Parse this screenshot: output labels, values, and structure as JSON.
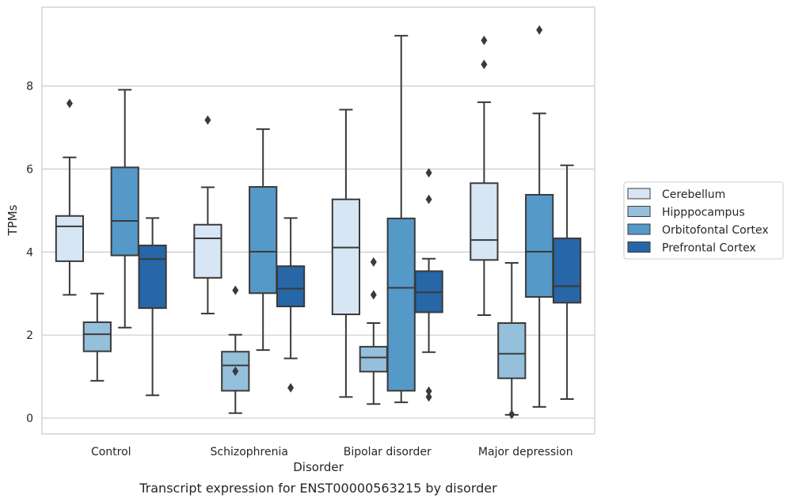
{
  "chart_data": {
    "type": "box",
    "caption": "Transcript expression for ENST00000563215 by disorder",
    "xlabel": "Disorder",
    "ylabel": "TPMs",
    "categories": [
      "Control",
      "Schizophrenia",
      "Bipolar disorder",
      "Major depression"
    ],
    "ylim": [
      -0.38,
      9.9
    ],
    "yticks": [
      0,
      2,
      4,
      6,
      8
    ],
    "grid": true,
    "legend_position": "right",
    "box_stroke": "#3a3a3a",
    "series": [
      {
        "name": "Cerebellum",
        "color": "#d6e6f4",
        "boxes": [
          {
            "whisker_low": 2.97,
            "q1": 3.78,
            "median": 4.62,
            "q3": 4.87,
            "whisker_high": 6.28,
            "outliers": [
              7.58
            ]
          },
          {
            "whisker_low": 2.52,
            "q1": 3.38,
            "median": 4.33,
            "q3": 4.66,
            "whisker_high": 5.56,
            "outliers": [
              7.18
            ]
          },
          {
            "whisker_low": 0.51,
            "q1": 2.5,
            "median": 4.11,
            "q3": 5.27,
            "whisker_high": 7.43,
            "outliers": []
          },
          {
            "whisker_low": 2.48,
            "q1": 3.81,
            "median": 4.29,
            "q3": 5.66,
            "whisker_high": 7.61,
            "outliers": [
              9.1,
              8.52
            ]
          }
        ]
      },
      {
        "name": "Hipppocampus",
        "color": "#95c0dc",
        "boxes": [
          {
            "whisker_low": 0.9,
            "q1": 1.61,
            "median": 2.02,
            "q3": 2.31,
            "whisker_high": 3.0,
            "outliers": []
          },
          {
            "whisker_low": 0.12,
            "q1": 0.66,
            "median": 1.27,
            "q3": 1.6,
            "whisker_high": 2.01,
            "outliers": [
              1.13,
              3.08
            ]
          },
          {
            "whisker_low": 0.34,
            "q1": 1.12,
            "median": 1.46,
            "q3": 1.72,
            "whisker_high": 2.29,
            "outliers": [
              3.76,
              2.97
            ]
          },
          {
            "whisker_low": 0.08,
            "q1": 0.96,
            "median": 1.55,
            "q3": 2.29,
            "whisker_high": 3.74,
            "outliers": [
              0.09
            ]
          }
        ]
      },
      {
        "name": "Orbitofontal Cortex",
        "color": "#5599c8",
        "boxes": [
          {
            "whisker_low": 2.18,
            "q1": 3.92,
            "median": 4.75,
            "q3": 6.04,
            "whisker_high": 7.91,
            "outliers": []
          },
          {
            "whisker_low": 1.64,
            "q1": 3.01,
            "median": 4.01,
            "q3": 5.57,
            "whisker_high": 6.96,
            "outliers": []
          },
          {
            "whisker_low": 0.38,
            "q1": 0.66,
            "median": 3.14,
            "q3": 4.81,
            "whisker_high": 9.21,
            "outliers": []
          },
          {
            "whisker_low": 0.27,
            "q1": 2.92,
            "median": 4.01,
            "q3": 5.38,
            "whisker_high": 7.34,
            "outliers": [
              9.35
            ]
          }
        ]
      },
      {
        "name": "Prefrontal Cortex",
        "color": "#2766a7",
        "boxes": [
          {
            "whisker_low": 0.55,
            "q1": 2.65,
            "median": 3.83,
            "q3": 4.16,
            "whisker_high": 4.82,
            "outliers": []
          },
          {
            "whisker_low": 1.44,
            "q1": 2.69,
            "median": 3.12,
            "q3": 3.66,
            "whisker_high": 4.82,
            "outliers": [
              0.73
            ]
          },
          {
            "whisker_low": 1.59,
            "q1": 2.55,
            "median": 3.03,
            "q3": 3.54,
            "whisker_high": 3.84,
            "outliers": [
              5.91,
              5.27,
              0.65,
              0.51
            ]
          },
          {
            "whisker_low": 0.46,
            "q1": 2.78,
            "median": 3.18,
            "q3": 4.33,
            "whisker_high": 6.09,
            "outliers": []
          }
        ]
      }
    ]
  }
}
